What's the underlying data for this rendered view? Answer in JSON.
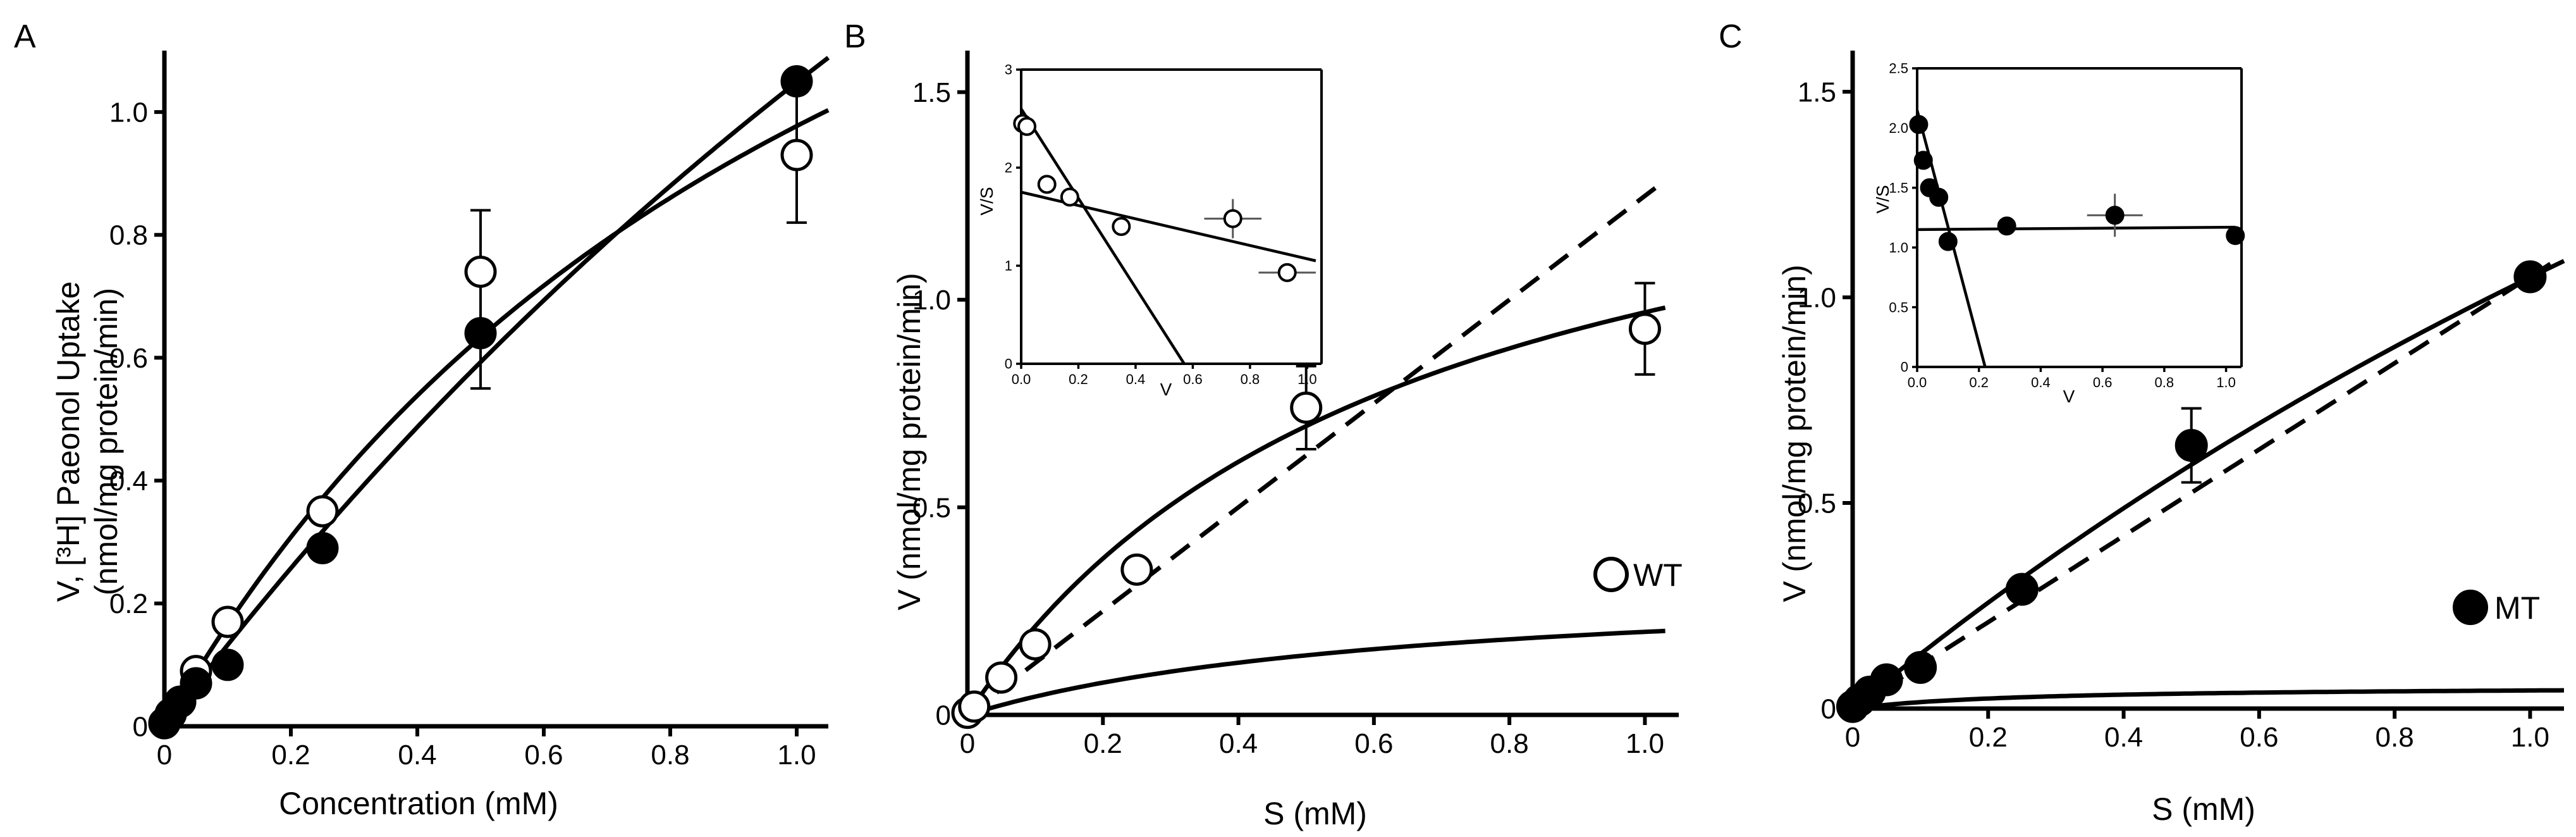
{
  "panels": {
    "a": {
      "label": "A"
    },
    "b": {
      "label": "B",
      "legend": "WT"
    },
    "c": {
      "label": "C",
      "legend": "MT"
    }
  },
  "chart_data": [
    {
      "id": "A",
      "type": "scatter",
      "xlabel": "Concentration (mM)",
      "ylabel_line1": "V, [³H] Paeonol Uptake",
      "ylabel_line2": "(nmol/mg protein/min)",
      "xlim": [
        0,
        1.05
      ],
      "ylim": [
        0,
        1.1
      ],
      "xticks": [
        0,
        0.2,
        0.4,
        0.6,
        0.8,
        1.0
      ],
      "xtick_labels": [
        "0",
        "0.2",
        "0.4",
        "0.6",
        "0.8",
        "1.0"
      ],
      "yticks": [
        0,
        0.2,
        0.4,
        0.6,
        0.8,
        1.0
      ],
      "ytick_labels": [
        "0",
        "0.2",
        "0.4",
        "0.6",
        "0.8",
        "1.0"
      ],
      "series": [
        {
          "name": "open",
          "marker": "open-circle",
          "x": [
            0,
            0.01,
            0.025,
            0.05,
            0.1,
            0.25,
            0.5,
            1.0
          ],
          "y": [
            0.005,
            0.02,
            0.04,
            0.09,
            0.17,
            0.35,
            0.74,
            0.93
          ],
          "err": [
            0,
            0,
            0,
            0,
            0,
            0,
            0.1,
            0.11
          ],
          "fit": {
            "model": "michaelis-menten",
            "vmax": 2.14,
            "km": 1.19
          }
        },
        {
          "name": "filled",
          "marker": "filled-circle",
          "x": [
            0,
            0.01,
            0.025,
            0.05,
            0.1,
            0.25,
            0.5,
            1.0
          ],
          "y": [
            0.005,
            0.02,
            0.04,
            0.07,
            0.1,
            0.29,
            0.64,
            1.05
          ],
          "err": [
            0,
            0,
            0,
            0,
            0,
            0,
            0.09,
            0
          ],
          "fit": {
            "model": "michaelis-menten",
            "vmax": 4.53,
            "km": 3.32
          }
        }
      ]
    },
    {
      "id": "B",
      "type": "scatter",
      "xlabel": "S (mM)",
      "ylabel": "V (nmol/mg protein/min)",
      "legend": "WT",
      "xlim": [
        0,
        1.05
      ],
      "ylim": [
        0,
        1.6
      ],
      "xticks": [
        0,
        0.2,
        0.4,
        0.6,
        0.8,
        1.0
      ],
      "xtick_labels": [
        "0",
        "0.2",
        "0.4",
        "0.6",
        "0.8",
        "1.0"
      ],
      "yticks": [
        0,
        0.5,
        1.0,
        1.5
      ],
      "ytick_labels": [
        "0",
        "0.5",
        "1.0",
        "1.5"
      ],
      "points": {
        "marker": "open-circle",
        "x": [
          0,
          0.01,
          0.05,
          0.1,
          0.25,
          0.5,
          1.0
        ],
        "y": [
          0.005,
          0.02,
          0.09,
          0.17,
          0.35,
          0.74,
          0.93
        ],
        "err": [
          0,
          0,
          0,
          0,
          0,
          0.1,
          0.11
        ]
      },
      "fits": [
        {
          "name": "total",
          "style": "solid",
          "vmax": 1.6,
          "km": 0.65
        },
        {
          "name": "linear",
          "style": "dashed",
          "slope": 1.25
        },
        {
          "name": "saturable",
          "style": "solid",
          "vmax": 0.33,
          "km": 0.65
        }
      ],
      "inset": {
        "type": "scatter",
        "xlabel": "V",
        "ylabel": "V/S",
        "xlim": [
          0,
          1.05
        ],
        "ylim": [
          0,
          3
        ],
        "xticks": [
          0,
          0.2,
          0.4,
          0.6,
          0.8,
          1.0
        ],
        "xtick_labels": [
          "0.0",
          "0.2",
          "0.4",
          "0.6",
          "0.8",
          "1.0"
        ],
        "yticks": [
          0,
          1,
          2,
          3
        ],
        "ytick_labels": [
          "0",
          "1",
          "2",
          "3"
        ],
        "points": {
          "x": [
            0.005,
            0.02,
            0.09,
            0.17,
            0.35,
            0.74,
            0.93
          ],
          "y": [
            2.45,
            2.42,
            1.83,
            1.7,
            1.4,
            1.48,
            0.93
          ],
          "xerr": [
            0,
            0,
            0,
            0,
            0,
            0.1,
            0.1
          ],
          "yerr": [
            0,
            0,
            0,
            0,
            0,
            0.2,
            0
          ]
        },
        "lines": [
          {
            "x": [
              0,
              0.57
            ],
            "y": [
              2.6,
              0
            ]
          },
          {
            "x": [
              0,
              1.03
            ],
            "y": [
              1.75,
              1.05
            ]
          }
        ]
      }
    },
    {
      "id": "C",
      "type": "scatter",
      "xlabel": "S (mM)",
      "ylabel": "V (nmol/mg protein/min)",
      "legend": "MT",
      "xlim": [
        0,
        1.05
      ],
      "ylim": [
        0,
        1.6
      ],
      "xticks": [
        0,
        0.2,
        0.4,
        0.6,
        0.8,
        1.0
      ],
      "xtick_labels": [
        "0",
        "0.2",
        "0.4",
        "0.6",
        "0.8",
        "1.0"
      ],
      "yticks": [
        0,
        0.5,
        1.0,
        1.5
      ],
      "ytick_labels": [
        "0",
        "0.5",
        "1.0",
        "1.5"
      ],
      "points": {
        "marker": "filled-circle",
        "x": [
          0,
          0.01,
          0.025,
          0.05,
          0.1,
          0.25,
          0.5,
          1.0
        ],
        "y": [
          0.005,
          0.02,
          0.04,
          0.07,
          0.1,
          0.29,
          0.64,
          1.05
        ],
        "err": [
          0,
          0,
          0,
          0,
          0,
          0,
          0.09,
          0
        ]
      },
      "fits": [
        {
          "name": "total",
          "style": "solid",
          "vmax": 4.53,
          "km": 3.32
        },
        {
          "name": "linear",
          "style": "dashed",
          "slope": 1.05
        },
        {
          "name": "saturable",
          "style": "solid",
          "vmax": 0.055,
          "km": 0.25
        },
        {
          "name": "baseline",
          "style": "solid",
          "slope": 0
        }
      ],
      "inset": {
        "type": "scatter",
        "xlabel": "V",
        "ylabel": "V/S",
        "xlim": [
          0,
          1.05
        ],
        "ylim": [
          0,
          2.5
        ],
        "xticks": [
          0,
          0.2,
          0.4,
          0.6,
          0.8,
          1.0
        ],
        "xtick_labels": [
          "0.0",
          "0.2",
          "0.4",
          "0.6",
          "0.8",
          "1.0"
        ],
        "yticks": [
          0,
          0.5,
          1.0,
          1.5,
          2.0,
          2.5
        ],
        "ytick_labels": [
          "0",
          "0.5",
          "1.0",
          "1.5",
          "2.0",
          "2.5"
        ],
        "points": {
          "x": [
            0.005,
            0.02,
            0.04,
            0.07,
            0.1,
            0.29,
            0.64,
            1.03
          ],
          "y": [
            2.03,
            1.73,
            1.5,
            1.42,
            1.05,
            1.18,
            1.27,
            1.1
          ],
          "xerr": [
            0,
            0,
            0,
            0,
            0,
            0,
            0.09,
            0
          ],
          "yerr": [
            0,
            0,
            0,
            0,
            0,
            0,
            0.18,
            0
          ]
        },
        "lines": [
          {
            "x": [
              0,
              0.22
            ],
            "y": [
              2.15,
              0
            ]
          },
          {
            "x": [
              0,
              1.03
            ],
            "y": [
              1.15,
              1.17
            ]
          }
        ]
      }
    }
  ]
}
